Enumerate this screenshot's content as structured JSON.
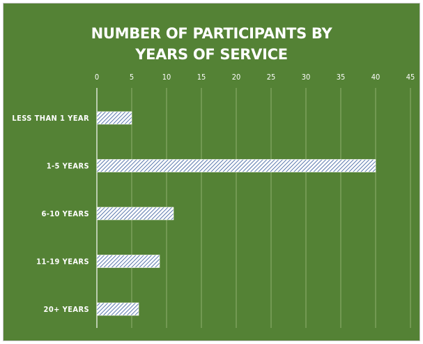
{
  "chart_data": {
    "type": "bar",
    "orientation": "horizontal",
    "title_lines": [
      "NUMBER OF PARTICIPANTS BY",
      "YEARS OF SERVICE"
    ],
    "categories": [
      "LESS THAN 1 YEAR",
      "1-5 YEARS",
      "6-10 YEARS",
      "11-19 YEARS",
      "20+ YEARS"
    ],
    "values": [
      5,
      40,
      11,
      9,
      6
    ],
    "xlim": [
      0,
      45
    ],
    "xticks": [
      "0",
      "5",
      "10",
      "15",
      "20",
      "25",
      "30",
      "35",
      "40",
      "45"
    ],
    "x_axis_position": "top",
    "grid": true,
    "legend": "none",
    "bar_fill": "diagonal-hatch",
    "colors": {
      "background": "#548235",
      "bar_fill": "#ffffff",
      "hatch": "#2f5597",
      "gridline": "#8fb070",
      "text": "#ffffff"
    }
  }
}
